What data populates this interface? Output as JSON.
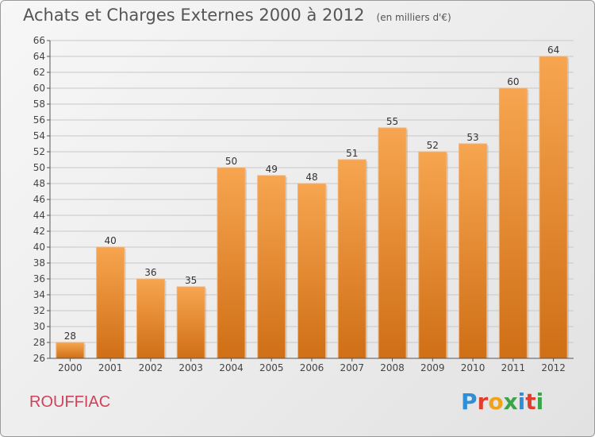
{
  "header": {
    "title": "Achats et Charges Externes 2000 à 2012",
    "unit": "(en milliers d'€)"
  },
  "footer": {
    "city": "ROUFFIAC",
    "logo_letters": [
      {
        "char": "P",
        "color": "#2e8fd8"
      },
      {
        "char": "r",
        "color": "#e13f2e"
      },
      {
        "char": "o",
        "color": "#f0a21a"
      },
      {
        "char": "x",
        "color": "#3ba34a"
      },
      {
        "char": "i",
        "color": "#2e8fd8"
      },
      {
        "char": "t",
        "color": "#e13f2e"
      },
      {
        "char": "i",
        "color": "#3ba34a"
      }
    ]
  },
  "chart_data": {
    "type": "bar",
    "title": "Achats et Charges Externes 2000 à 2012",
    "categories": [
      "2000",
      "2001",
      "2002",
      "2003",
      "2004",
      "2005",
      "2006",
      "2007",
      "2008",
      "2009",
      "2010",
      "2011",
      "2012"
    ],
    "values": [
      28,
      40,
      36,
      35,
      50,
      49,
      48,
      51,
      55,
      52,
      53,
      60,
      64
    ],
    "ylim": [
      26,
      66
    ],
    "yticks": [
      26,
      28,
      30,
      32,
      34,
      36,
      38,
      40,
      42,
      44,
      46,
      48,
      50,
      52,
      54,
      56,
      58,
      60,
      62,
      64,
      66
    ],
    "xlabel": "",
    "ylabel": "",
    "grid": true,
    "bar_color": "#f29a3e",
    "bar_color_dark": "#d0731a"
  }
}
